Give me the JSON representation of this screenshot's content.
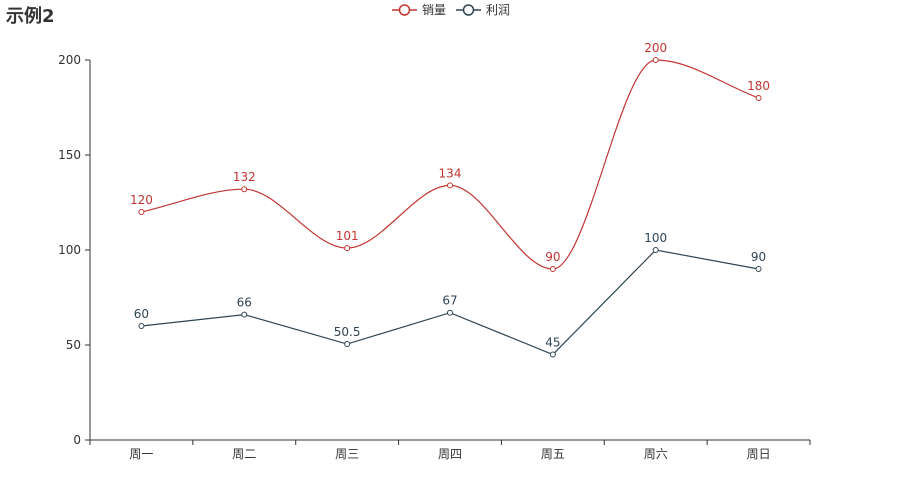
{
  "chart_data": {
    "type": "line",
    "title": "示例2",
    "categories": [
      "周一",
      "周二",
      "周三",
      "周四",
      "周五",
      "周六",
      "周日"
    ],
    "series": [
      {
        "name": "销量",
        "values": [
          120,
          132,
          101,
          134,
          90,
          200,
          180
        ],
        "color": "#c23531",
        "smooth": true
      },
      {
        "name": "利润",
        "values": [
          60,
          66,
          50.5,
          67,
          45,
          100,
          90
        ],
        "color": "#2f4554",
        "smooth": false
      }
    ],
    "ylim": [
      0,
      200
    ],
    "yticks": [
      0,
      50,
      100,
      150,
      200
    ],
    "grid": false,
    "legend_position": "top-center",
    "xlabel": "",
    "ylabel": ""
  }
}
